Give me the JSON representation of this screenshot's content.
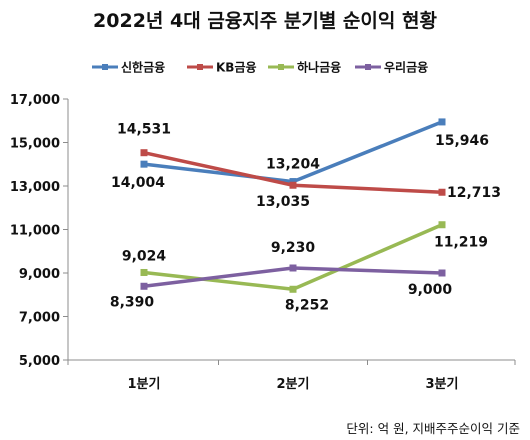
{
  "chart_data": {
    "type": "line",
    "title": "2022년 4대 금융지주 분기별 순이익 현황",
    "note": "단위: 억 원, 지배주주순이익 기준",
    "categories": [
      "1분기",
      "2분기",
      "3분기"
    ],
    "ylim": [
      5000,
      17000
    ],
    "yticks": [
      5000,
      7000,
      9000,
      11000,
      13000,
      15000,
      17000
    ],
    "ytick_labels": [
      "5,000",
      "7,000",
      "9,000",
      "11,000",
      "13,000",
      "15,000",
      "17,000"
    ],
    "grid": false,
    "legend_position": "top",
    "series": [
      {
        "name": "신한금융",
        "color": "#4a7ebb",
        "values": [
          14004,
          13204,
          15946
        ],
        "labels": [
          "14,004",
          "13,204",
          "15,946"
        ]
      },
      {
        "name": "KB금융",
        "color": "#be4b48",
        "values": [
          14531,
          13035,
          12713
        ],
        "labels": [
          "14,531",
          "13,035",
          "12,713"
        ]
      },
      {
        "name": "하나금융",
        "color": "#98b954",
        "values": [
          9024,
          8252,
          11219
        ],
        "labels": [
          "9,024",
          "8,252",
          "11,219"
        ]
      },
      {
        "name": "우리금융",
        "color": "#7d60a0",
        "values": [
          8390,
          9230,
          9000
        ],
        "labels": [
          "8,390",
          "9,230",
          "9,000"
        ]
      }
    ]
  }
}
